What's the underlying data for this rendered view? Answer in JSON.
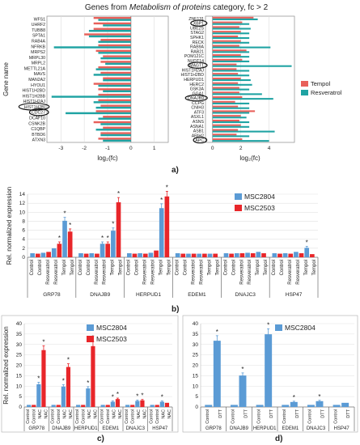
{
  "colors": {
    "tempol": "#e8605a",
    "resveratrol": "#1fa3a3",
    "msc2804": "#5b9bd5",
    "msc2503": "#e8262a"
  },
  "panel_labels": {
    "a": "a)",
    "b": "b)",
    "c": "c)",
    "d": "d)"
  },
  "chart_data": [
    {
      "id": "a-left",
      "type": "bar",
      "orientation": "horizontal",
      "title": "Genes from Metabolism of proteins category, fc > 2",
      "ylabel": "Gene name",
      "xlabel": "log₂(fc)",
      "xlim": [
        -3.6,
        1.6
      ],
      "xticks": [
        -3,
        -2,
        -1,
        0,
        1
      ],
      "categories": [
        "WFS1",
        "UHRF2",
        "TUBB8",
        "SPTA1",
        "RAB4A",
        "NFRKB",
        "MRPS2",
        "MRPL30",
        "MRPL2",
        "METTL21A",
        "MAVS",
        "MAN2A2",
        "HYOU1",
        "HIST1H2BD",
        "HIST1H2BB",
        "HIST1H2AJ",
        "HIST1H2BI",
        "CDC27",
        "DCAF10",
        "CSNK2B",
        "C1QBP",
        "BTBD6",
        "ATXN3"
      ],
      "circled": [
        "HIST1H2BI",
        "CDC27"
      ],
      "series": [
        {
          "name": "Tempol",
          "values": [
            -1.6,
            -1.6,
            -1.6,
            -2.0,
            -1.3,
            -1.4,
            -1.5,
            -1.2,
            -1.3,
            -1.4,
            -1.3,
            -1.2,
            -1.6,
            -1.4,
            -1.4,
            -1.4,
            -1.3,
            -1.5,
            -1.2,
            -1.6,
            -1.2,
            -1.3,
            -1.4
          ]
        },
        {
          "name": "Resveratrol",
          "values": [
            -1.4,
            -1.2,
            -1.8,
            -1.8,
            -1.4,
            -3.3,
            -1.4,
            -1.3,
            -1.1,
            -1.5,
            -1.6,
            -1.2,
            -1.4,
            -1.2,
            -3.4,
            -1.6,
            -1.5,
            -2.8,
            -1.4,
            -1.3,
            -1.5,
            -1.3,
            -1.2
          ]
        }
      ]
    },
    {
      "id": "a-right",
      "type": "bar",
      "orientation": "horizontal",
      "xlabel": "log₂(fc)",
      "xlim": [
        -0.5,
        5.8
      ],
      "xticks": [
        0,
        2,
        4
      ],
      "categories": [
        "ZNF131",
        "XBP1",
        "UBE2S",
        "STAG2",
        "SPHK1",
        "RECK",
        "RAB9A",
        "RAB21",
        "POM121C",
        "NUDT14",
        "MAGT1",
        "HIST1H2AJ",
        "HIST1H2BD",
        "HERPUD1",
        "HERC2",
        "GSK3A",
        "GGA1",
        "DNAJB9",
        "CCPG",
        "CNIH3",
        "ATF3",
        "ASXL1",
        "ASNS",
        "ASNA1",
        "ASB1",
        "ARIH2",
        "APC"
      ],
      "circled": [
        "XBP1",
        "MAGT1",
        "DNAJB9",
        "APC"
      ],
      "series": [
        {
          "name": "Tempol",
          "values": [
            2.9,
            2.1,
            1.9,
            2.0,
            1.8,
            2.0,
            1.9,
            2.4,
            2.0,
            2.1,
            1.7,
            1.7,
            1.8,
            2.0,
            1.8,
            1.9,
            1.9,
            2.1,
            1.6,
            1.8,
            3.0,
            2.0,
            1.9,
            2.0,
            1.8,
            1.7,
            2.1
          ]
        },
        {
          "name": "Resveratrol",
          "values": [
            3.2,
            2.6,
            2.7,
            2.6,
            2.6,
            2.6,
            4.1,
            2.6,
            2.6,
            2.6,
            5.6,
            2.6,
            2.6,
            2.7,
            2.8,
            2.6,
            3.5,
            4.3,
            2.6,
            2.6,
            2.6,
            2.4,
            2.6,
            2.6,
            4.4,
            2.6,
            4.0
          ]
        }
      ],
      "legend": [
        "Tempol",
        "Resveratrol"
      ]
    },
    {
      "id": "b",
      "type": "bar",
      "ylabel": "Rel. normalized expression",
      "ylim": [
        0,
        14
      ],
      "yticks": [
        0,
        2,
        4,
        6,
        8,
        10,
        12,
        14
      ],
      "groups": [
        "GRP78",
        "DNAJB9",
        "HERPUD1",
        "EDEM1",
        "DNAJC3",
        "HSP47"
      ],
      "conditions": [
        "Control",
        "Control",
        "Resveratrol",
        "Resveratrol",
        "Tempol",
        "Tempol"
      ],
      "series": [
        {
          "name": "MSC2804",
          "values": [
            [
              0.9,
              1.0,
              2.0,
              8.1
            ],
            [
              0.9,
              0.9,
              3.0,
              5.9
            ],
            [
              0.9,
              0.9,
              1.0,
              10.9
            ],
            [
              0.9,
              0.8,
              0.8,
              0.8
            ],
            [
              0.9,
              0.9,
              1.0,
              1.2
            ],
            [
              0.9,
              0.9,
              1.2,
              2.1
            ]
          ]
        },
        {
          "name": "MSC2503",
          "values": [
            [
              0.8,
              1.2,
              3.0,
              5.7
            ],
            [
              0.8,
              0.8,
              3.0,
              12.2
            ],
            [
              0.8,
              0.8,
              1.5,
              13.5
            ],
            [
              0.8,
              0.8,
              0.8,
              0.8
            ],
            [
              0.8,
              0.9,
              0.9,
              0.9
            ],
            [
              0.8,
              0.8,
              0.9,
              0.7
            ]
          ]
        }
      ],
      "legend": [
        "MSC2804",
        "MSC2503"
      ]
    },
    {
      "id": "c",
      "type": "bar",
      "ylabel": "Rel. normalized expression",
      "ylim": [
        0,
        40
      ],
      "yticks": [
        0,
        5,
        10,
        15,
        20,
        25,
        30,
        35,
        40
      ],
      "groups": [
        "GRP78",
        "DNAJB9",
        "HERPUD1",
        "EDEM1",
        "DNAJC3",
        "HSP47"
      ],
      "conditions": [
        "Control",
        "Control",
        "NAC",
        "NAC"
      ],
      "series": [
        {
          "name": "MSC2804",
          "values": [
            [
              1,
              10.9
            ],
            [
              1,
              9.8
            ],
            [
              1,
              8.9
            ],
            [
              1,
              2.5
            ],
            [
              1,
              2.9
            ],
            [
              1,
              2.5
            ]
          ]
        },
        {
          "name": "MSC2503",
          "values": [
            [
              1,
              27.3
            ],
            [
              1,
              19.2
            ],
            [
              1,
              29.2
            ],
            [
              1,
              3.8
            ],
            [
              1,
              3.2
            ],
            [
              1,
              2.0
            ]
          ]
        }
      ],
      "legend": [
        "MSC2804",
        "MSC2503"
      ]
    },
    {
      "id": "d",
      "type": "bar",
      "ylim": [
        0,
        40
      ],
      "yticks": [
        0,
        5,
        10,
        15,
        20,
        25,
        30,
        35,
        40
      ],
      "groups": [
        "GRP78",
        "DNAJB9",
        "HERPUD1",
        "EDEM1",
        "DNAJC3",
        "HSP47"
      ],
      "conditions": [
        "Control",
        "DTT"
      ],
      "series": [
        {
          "name": "MSC2804",
          "values": [
            [
              1,
              31.8
            ],
            [
              1,
              15.1
            ],
            [
              1,
              34.9
            ],
            [
              1,
              2.4
            ],
            [
              1,
              2.8
            ],
            [
              1,
              2.0
            ]
          ]
        }
      ],
      "legend": [
        "MSC2804"
      ]
    }
  ]
}
